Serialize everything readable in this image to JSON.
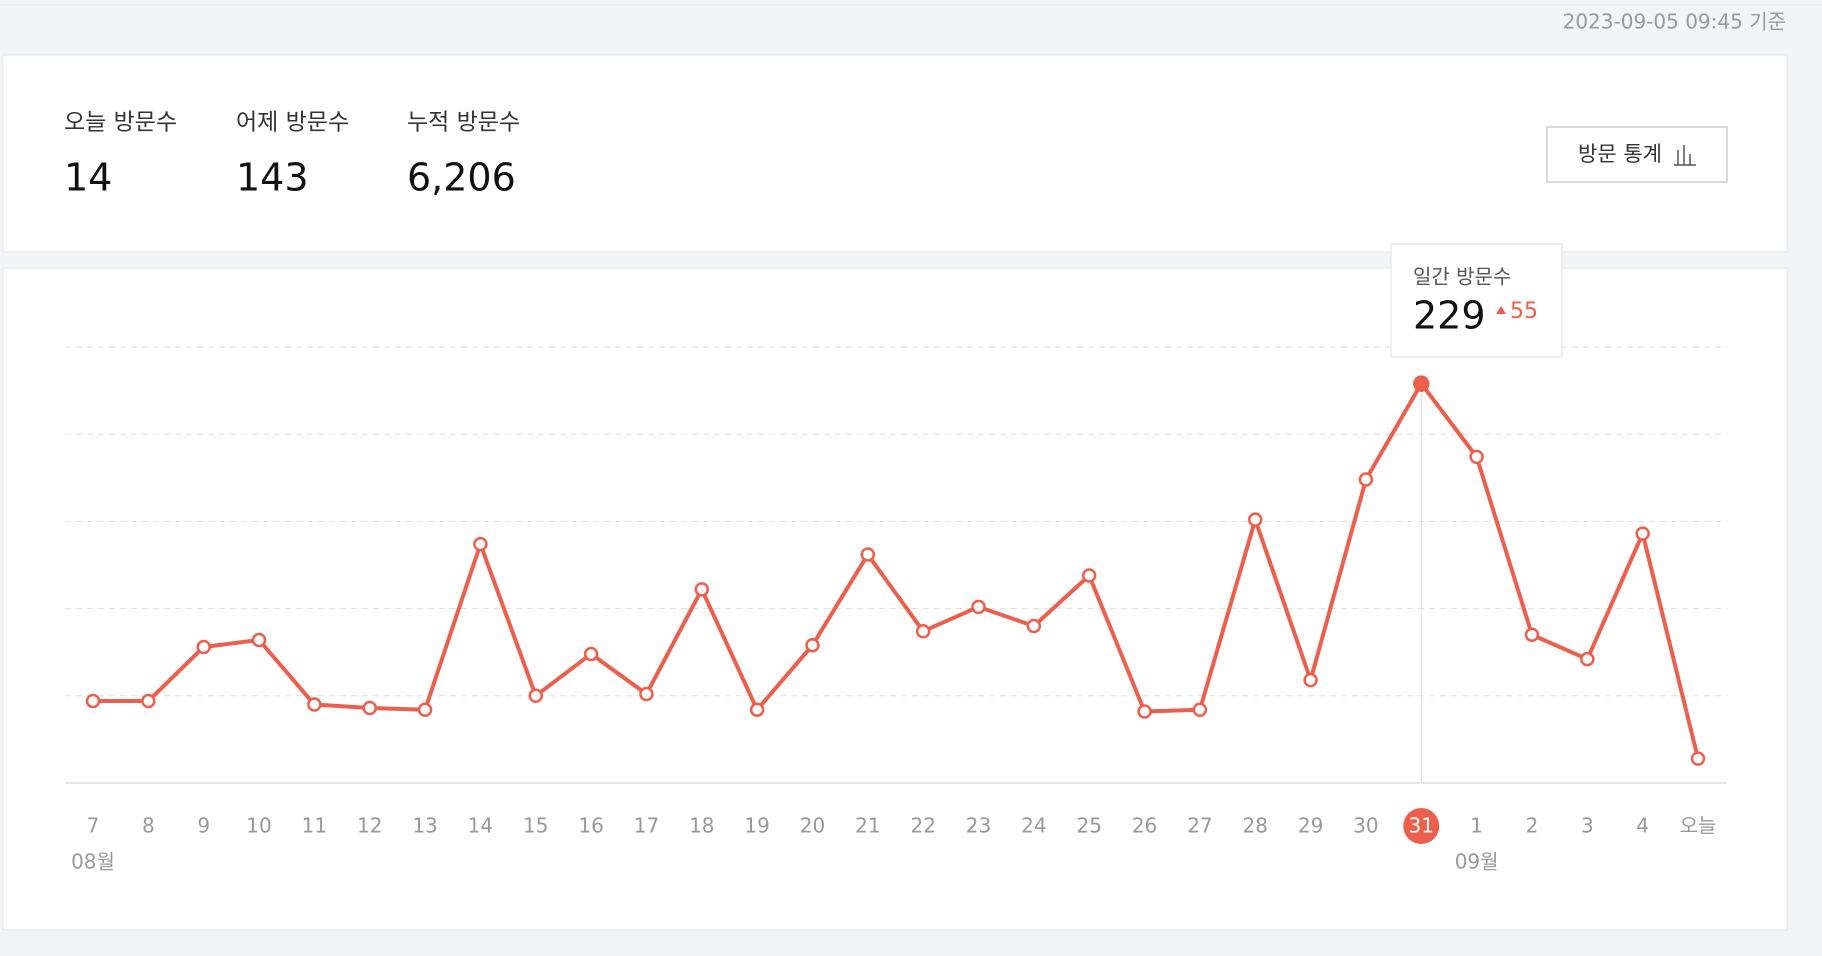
{
  "timestamp": "2023-09-05 09:45 기준",
  "stats": [
    {
      "label": "오늘 방문수",
      "value": "14"
    },
    {
      "label": "어제 방문수",
      "value": "143"
    },
    {
      "label": "누적 방문수",
      "value": "6,206"
    }
  ],
  "button": "방문 통계",
  "chart_data": {
    "type": "line",
    "categories": [
      "7",
      "8",
      "9",
      "10",
      "11",
      "12",
      "13",
      "14",
      "15",
      "16",
      "17",
      "18",
      "19",
      "20",
      "21",
      "22",
      "23",
      "24",
      "25",
      "26",
      "27",
      "28",
      "29",
      "30",
      "31",
      "1",
      "2",
      "3",
      "4",
      "오늘"
    ],
    "month_labels": [
      "08월",
      null,
      null,
      null,
      null,
      null,
      null,
      null,
      null,
      null,
      null,
      null,
      null,
      null,
      null,
      null,
      null,
      null,
      null,
      null,
      null,
      null,
      null,
      null,
      null,
      "09월",
      null,
      null,
      null,
      null
    ],
    "series": [
      {
        "name": "일간 방문수",
        "color": "#ec5f4d",
        "values": [
          47,
          47,
          78,
          82,
          45,
          43,
          42,
          137,
          50,
          74,
          51,
          111,
          42,
          79,
          131,
          87,
          101,
          90,
          119,
          41,
          42,
          151,
          59,
          174,
          229,
          187,
          85,
          71,
          143,
          14
        ]
      }
    ],
    "ylim": [
      0,
      250
    ],
    "gridlines": [
      50,
      100,
      150,
      200,
      250
    ],
    "grid": true,
    "tooltip": {
      "label": "일간 방문수",
      "category": "31",
      "value": 229,
      "change": 55
    }
  }
}
